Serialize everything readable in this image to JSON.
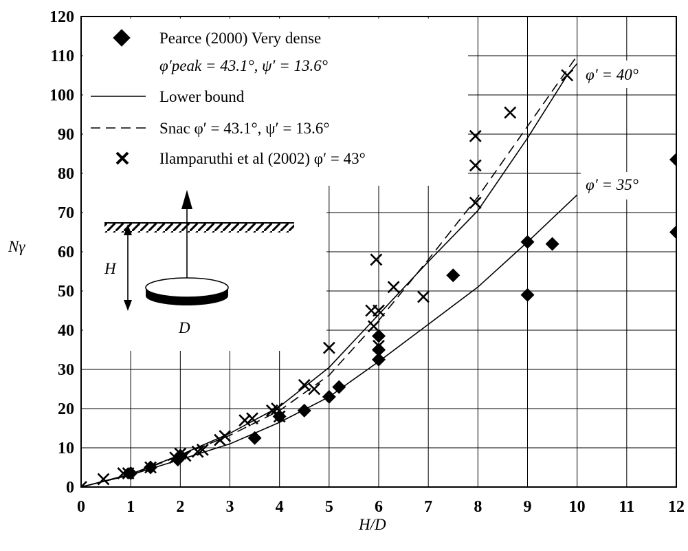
{
  "chart_data": {
    "type": "scatter",
    "xlabel": "H/D",
    "ylabel": "Nγ",
    "xlim": [
      0,
      12
    ],
    "ylim": [
      0,
      120
    ],
    "x_ticks": [
      0,
      1,
      2,
      3,
      4,
      5,
      6,
      7,
      8,
      9,
      10,
      11,
      12
    ],
    "y_ticks": [
      0,
      10,
      20,
      30,
      40,
      50,
      60,
      70,
      80,
      90,
      100,
      110,
      120
    ],
    "grid": true,
    "legend_position": "top-left",
    "legend": [
      {
        "marker": "diamond",
        "label": "Pearce (2000) Very dense",
        "sublabel": "φ′peak = 43.1°, ψ′ = 13.6°"
      },
      {
        "marker": "solid-line",
        "label": "Lower bound"
      },
      {
        "marker": "dashed-line",
        "label": "Snac  φ′ = 43.1°, ψ′ = 13.6°"
      },
      {
        "marker": "x",
        "label": "Ilamparuthi et al (2002)    φ′ = 43°"
      }
    ],
    "series": [
      {
        "name": "Pearce (2000) Very dense",
        "marker": "diamond",
        "points": [
          [
            1,
            3.5
          ],
          [
            1.4,
            5
          ],
          [
            1.95,
            7
          ],
          [
            2,
            8
          ],
          [
            3.5,
            12.5
          ],
          [
            4,
            18
          ],
          [
            4.5,
            19.5
          ],
          [
            5,
            23
          ],
          [
            5.2,
            25.5
          ],
          [
            6,
            32.5
          ],
          [
            6,
            35
          ],
          [
            6,
            38.5
          ],
          [
            7.5,
            54
          ],
          [
            9,
            62.5
          ],
          [
            9,
            49
          ],
          [
            9.5,
            62
          ],
          [
            12,
            83.5
          ],
          [
            12,
            65
          ]
        ]
      },
      {
        "name": "Ilamparuthi et al (2002)    φ′ = 43°",
        "marker": "x",
        "points": [
          [
            0,
            0
          ],
          [
            0.45,
            2
          ],
          [
            0.85,
            3.5
          ],
          [
            0.95,
            3.5
          ],
          [
            1.4,
            5
          ],
          [
            1.9,
            7.5
          ],
          [
            2,
            8.5
          ],
          [
            2.1,
            8
          ],
          [
            2.35,
            9
          ],
          [
            2.45,
            9.5
          ],
          [
            2.8,
            12
          ],
          [
            2.9,
            13
          ],
          [
            3.3,
            17
          ],
          [
            3.45,
            17.5
          ],
          [
            3.85,
            19.5
          ],
          [
            3.95,
            20
          ],
          [
            4,
            18
          ],
          [
            4.5,
            26
          ],
          [
            4.7,
            25
          ],
          [
            5,
            35.5
          ],
          [
            5.85,
            45
          ],
          [
            5.9,
            41
          ],
          [
            5.95,
            58
          ],
          [
            6,
            45
          ],
          [
            6,
            36
          ],
          [
            6.3,
            51
          ],
          [
            6.9,
            48.5
          ],
          [
            7.95,
            89.5
          ],
          [
            7.95,
            82
          ],
          [
            7.95,
            72.5
          ],
          [
            8.65,
            95.5
          ],
          [
            9.8,
            105
          ]
        ]
      },
      {
        "name": "Lower bound",
        "line": "solid",
        "annotation": "φ′ = 40°",
        "points": [
          [
            0,
            0
          ],
          [
            1,
            3.3
          ],
          [
            2,
            8.2
          ],
          [
            3,
            13.7
          ],
          [
            4,
            20.5
          ],
          [
            5,
            30.5
          ],
          [
            6,
            44
          ],
          [
            7,
            57.5
          ],
          [
            8,
            70.5
          ],
          [
            9,
            89
          ],
          [
            9.8,
            105
          ],
          [
            10,
            108
          ]
        ]
      },
      {
        "name": "Snac  φ′ = 43.1°, ψ′ = 13.6°",
        "line": "dashed",
        "points": [
          [
            0,
            0
          ],
          [
            1,
            3.2
          ],
          [
            2,
            8
          ],
          [
            3,
            13.2
          ],
          [
            4,
            19.5
          ],
          [
            5,
            28.5
          ],
          [
            6,
            42.5
          ],
          [
            7,
            58
          ],
          [
            8,
            74
          ],
          [
            9,
            92
          ],
          [
            10,
            110
          ]
        ]
      },
      {
        "name": "Lower bound",
        "line": "solid",
        "annotation": "φ′ = 35°",
        "points": [
          [
            0,
            0
          ],
          [
            1,
            3.1
          ],
          [
            2,
            7
          ],
          [
            3,
            11
          ],
          [
            4,
            16.5
          ],
          [
            5,
            23
          ],
          [
            6,
            32
          ],
          [
            7,
            41.5
          ],
          [
            8,
            51
          ],
          [
            9,
            62.5
          ],
          [
            10,
            74.5
          ]
        ]
      }
    ],
    "annotations": [
      "φ′ = 40°",
      "φ′ = 35°"
    ]
  },
  "inset": {
    "labels": {
      "height": "H",
      "diameter": "D"
    }
  }
}
